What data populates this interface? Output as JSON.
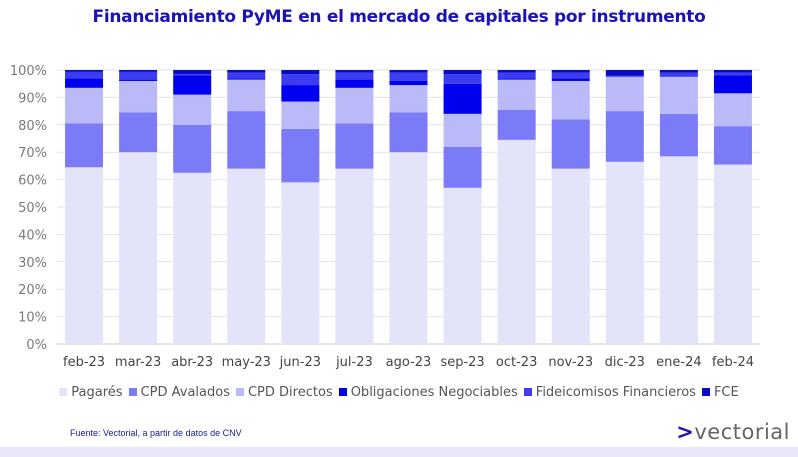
{
  "header": {
    "title": "Financiamiento PyME en el mercado de capitales por instrumento"
  },
  "footer": {
    "source": "Fuente: Vectorial, a partir de datos de CNV",
    "brand_arrow": ">",
    "brand_name": "vectorial"
  },
  "chart_data": {
    "type": "bar",
    "stacked": true,
    "percent": true,
    "title": "Financiamiento PyME en el mercado de capitales por instrumento",
    "xlabel": "",
    "ylabel": "",
    "ylim": [
      0,
      100
    ],
    "yticks": [
      "0%",
      "10%",
      "20%",
      "30%",
      "40%",
      "50%",
      "60%",
      "70%",
      "80%",
      "90%",
      "100%"
    ],
    "grid": true,
    "legend_position": "bottom",
    "categories": [
      "feb-23",
      "mar-23",
      "abr-23",
      "may-23",
      "jun-23",
      "jul-23",
      "ago-23",
      "sep-23",
      "oct-23",
      "nov-23",
      "dic-23",
      "ene-24",
      "feb-24"
    ],
    "series": [
      {
        "name": "Pagarés",
        "color": "#e3e3fa",
        "values": [
          64.5,
          70.0,
          62.5,
          64.0,
          59.0,
          64.0,
          70.0,
          57.0,
          74.5,
          64.0,
          66.5,
          68.5,
          65.5
        ]
      },
      {
        "name": "CPD Avalados",
        "color": "#7b7bf7",
        "values": [
          16.0,
          14.5,
          17.5,
          21.0,
          19.5,
          16.5,
          14.5,
          15.0,
          11.0,
          18.0,
          18.5,
          15.5,
          14.0
        ]
      },
      {
        "name": "CPD Directos",
        "color": "#babaf9",
        "values": [
          13.0,
          11.5,
          11.0,
          11.5,
          10.0,
          13.0,
          10.0,
          12.0,
          11.0,
          14.0,
          12.5,
          13.5,
          12.0
        ]
      },
      {
        "name": "Obligaciones Negociables",
        "color": "#0000f0",
        "values": [
          3.5,
          0.5,
          7.0,
          0.5,
          6.0,
          3.0,
          1.5,
          11.0,
          0.5,
          1.0,
          0.0,
          0.0,
          6.5
        ]
      },
      {
        "name": "Fideicomisos Financieros",
        "color": "#3c3cf2",
        "values": [
          2.3,
          2.8,
          0.5,
          2.0,
          4.0,
          2.5,
          3.0,
          3.5,
          2.0,
          2.0,
          0.5,
          1.5,
          1.0
        ]
      },
      {
        "name": "FCE",
        "color": "#0a0ac0",
        "values": [
          0.7,
          0.7,
          1.5,
          1.0,
          1.5,
          1.0,
          1.0,
          1.5,
          1.0,
          1.0,
          2.0,
          1.0,
          1.0
        ]
      }
    ]
  }
}
